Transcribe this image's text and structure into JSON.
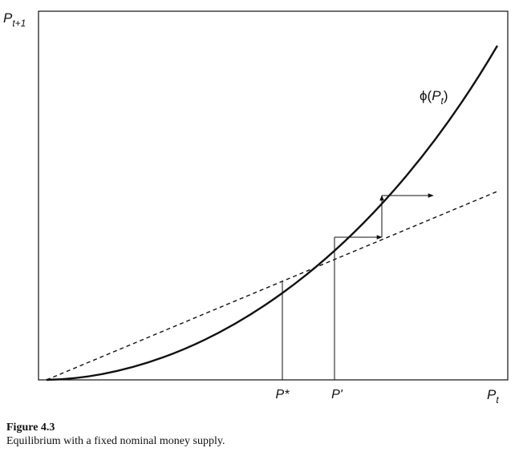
{
  "figure": {
    "y_axis": {
      "symbol": "P",
      "subscript": "t+1"
    },
    "x_axis": {
      "symbol": "P",
      "subscript": "t"
    },
    "curve": {
      "prefix": "ϕ(",
      "symbol": "P",
      "subscript": "t",
      "suffix": ")"
    },
    "equilibrium_label": "P*",
    "start_label": "P'"
  },
  "caption": {
    "number": "Figure 4.3",
    "text": "Equilibrium with a fixed nominal money supply."
  }
}
